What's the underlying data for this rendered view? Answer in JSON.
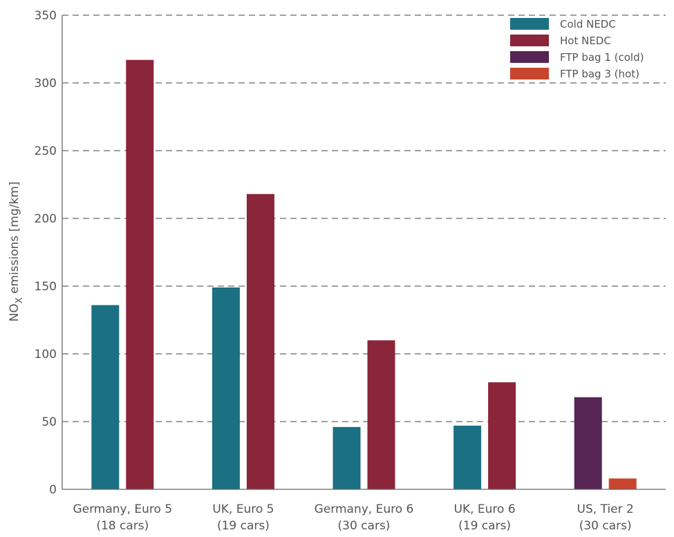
{
  "chart_data": {
    "type": "bar",
    "title": "",
    "xlabel": "",
    "ylabel": "NO",
    "ylabel_subscript": "X",
    "ylabel_rest": " emissions [mg/km]",
    "ylim": [
      0,
      350
    ],
    "yticks": [
      "0",
      "50",
      "100",
      "150",
      "200",
      "250",
      "300",
      "350"
    ],
    "ytick_values": [
      0,
      50,
      100,
      150,
      200,
      250,
      300,
      350
    ],
    "grid": true,
    "legend_position": "top-right",
    "categories": [
      {
        "line1": "Germany, Euro 5",
        "line2": "(18 cars)"
      },
      {
        "line1": "UK, Euro 5",
        "line2": "(19 cars)"
      },
      {
        "line1": "Germany, Euro 6",
        "line2": "(30 cars)"
      },
      {
        "line1": "UK, Euro 6",
        "line2": "(19 cars)"
      },
      {
        "line1": "US, Tier 2",
        "line2": "(30 cars)"
      }
    ],
    "series": [
      {
        "name": "Cold NEDC",
        "color": "#1b7083",
        "values": [
          136,
          149,
          46,
          47,
          null
        ]
      },
      {
        "name": "Hot NEDC",
        "color": "#8b2539",
        "values": [
          317,
          218,
          110,
          79,
          null
        ]
      },
      {
        "name": "FTP bag 1 (cold)",
        "color": "#562553",
        "values": [
          null,
          null,
          null,
          null,
          68
        ]
      },
      {
        "name": "FTP bag 3 (hot)",
        "color": "#c8452d",
        "values": [
          null,
          null,
          null,
          null,
          8
        ]
      }
    ]
  }
}
